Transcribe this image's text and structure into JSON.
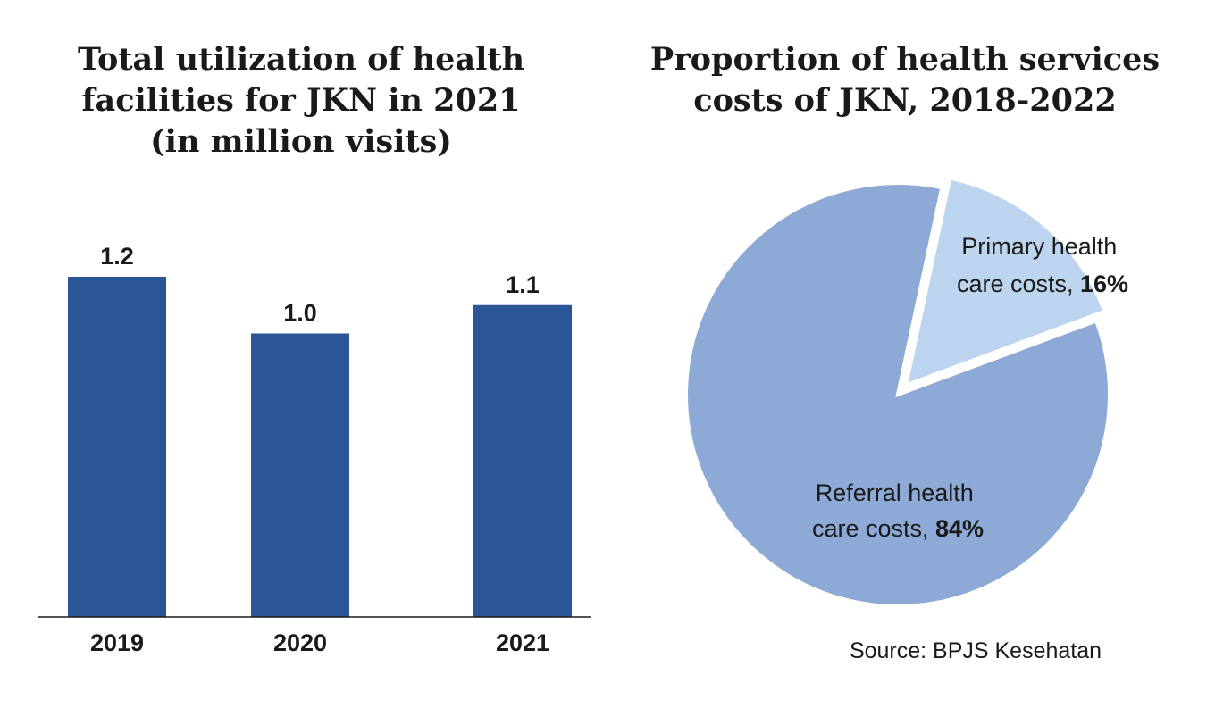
{
  "chart_data": [
    {
      "type": "bar",
      "title": "Total utilization of health facilities for JKN in 2021 (in million visits)",
      "title_lines": [
        "Total utilization of health",
        "facilities for JKN in 2021",
        "(in million visits)"
      ],
      "categories": [
        "2019",
        "2020",
        "2021"
      ],
      "values": [
        1.2,
        1.0,
        1.1
      ],
      "value_labels": [
        "1.2",
        "1.0",
        "1.1"
      ],
      "xlabel": "",
      "ylabel": "",
      "ylim": [
        0,
        1.2
      ],
      "grid": false,
      "color": "#2b5597"
    },
    {
      "type": "pie",
      "title": "Proportion of health services costs of JKN, 2018-2022",
      "title_lines": [
        "Proportion of health services",
        "costs of JKN, 2018-2022"
      ],
      "slices": [
        {
          "label": "Primary health care costs",
          "label_lines": [
            "Primary health",
            "care costs, "
          ],
          "pct_text": "16%",
          "value": 16,
          "color": "#bcd4ee",
          "exploded": true
        },
        {
          "label": "Referral health care costs",
          "label_lines": [
            "Referral health",
            "care costs, "
          ],
          "pct_text": "84%",
          "value": 84,
          "color": "#8daad7",
          "exploded": false
        }
      ],
      "source": "Source: BPJS Kesehatan"
    }
  ]
}
